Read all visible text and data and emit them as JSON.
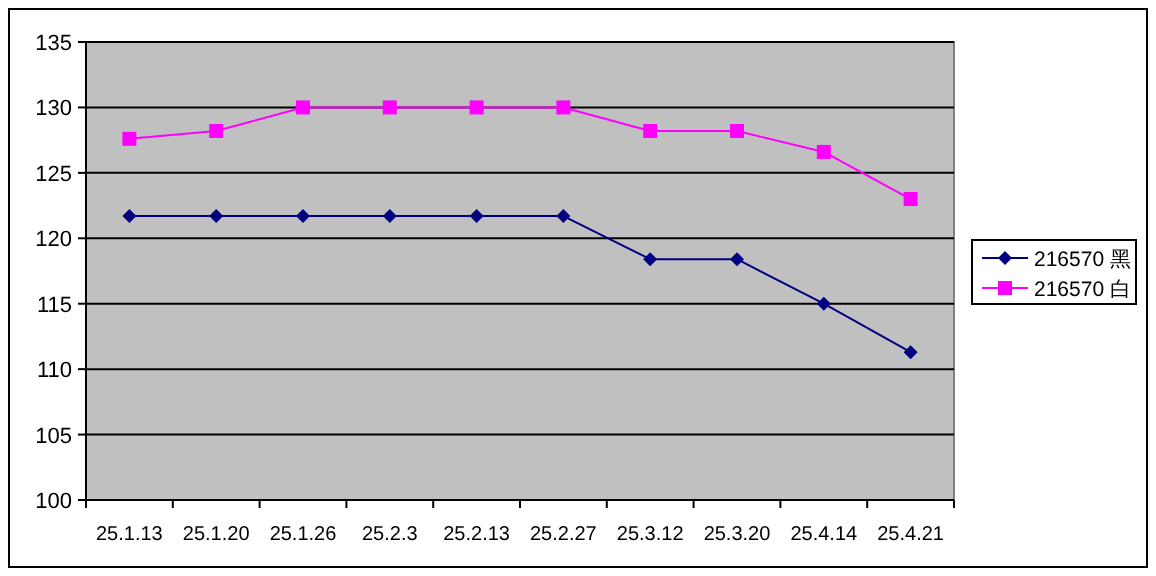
{
  "chart_data": {
    "type": "line",
    "categories": [
      "25.1.13",
      "25.1.20",
      "25.1.26",
      "25.2.3",
      "25.2.13",
      "25.2.27",
      "25.3.12",
      "25.3.20",
      "25.4.14",
      "25.4.21"
    ],
    "series": [
      {
        "name": "216570 黑",
        "color": "#000080",
        "marker": "diamond",
        "values": [
          121.7,
          121.7,
          121.7,
          121.7,
          121.7,
          121.7,
          118.4,
          118.4,
          115.0,
          111.3
        ]
      },
      {
        "name": "216570 白",
        "color": "#ff00ff",
        "marker": "square",
        "values": [
          127.6,
          128.2,
          130,
          130,
          130,
          130,
          128.2,
          128.2,
          126.6,
          123.0
        ]
      }
    ],
    "ylim": [
      100,
      135
    ],
    "yticks": [
      100,
      105,
      110,
      115,
      120,
      125,
      130,
      135
    ],
    "grid": "y",
    "legend": "right",
    "line_style": "solid"
  }
}
